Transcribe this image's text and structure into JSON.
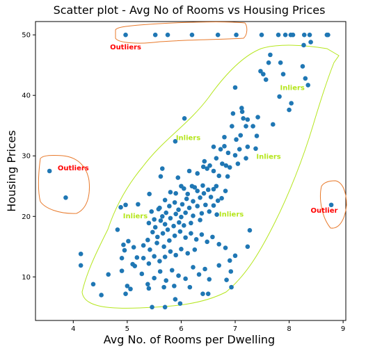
{
  "chart_data": {
    "type": "scatter",
    "title": "Scatter plot - Avg No of Rooms vs Housing Prices",
    "xlabel": "Avg No. of Rooms per Dwelling",
    "ylabel": "Housing Prices",
    "xlim": [
      3.3,
      9.05
    ],
    "ylim": [
      2.8,
      52.2
    ],
    "xticks": [
      4,
      5,
      6,
      7,
      8,
      9
    ],
    "yticks": [
      10,
      20,
      30,
      40,
      50
    ],
    "grid": false,
    "point_color": "#1f77b4",
    "outlier_color": "#ff0000",
    "inlier_color": "#b5e61d",
    "outlier_region_color": "#e8792a",
    "inlier_region_color": "#b5e61d",
    "annotations": [
      {
        "text": "Outliers",
        "x": 4.97,
        "y": 47.6,
        "color": "#ff0000"
      },
      {
        "text": "Outliers",
        "x": 4.0,
        "y": 27.6,
        "color": "#ff0000"
      },
      {
        "text": "Outlier",
        "x": 8.65,
        "y": 20.6,
        "color": "#ff0000"
      },
      {
        "text": "Inliers",
        "x": 6.13,
        "y": 32.6,
        "color": "#b5e61d"
      },
      {
        "text": "Inliers",
        "x": 7.62,
        "y": 29.5,
        "color": "#b5e61d"
      },
      {
        "text": "Inliers",
        "x": 8.06,
        "y": 40.9,
        "color": "#b5e61d"
      },
      {
        "text": "Inliers",
        "x": 5.15,
        "y": 19.7,
        "color": "#b5e61d"
      },
      {
        "text": "Inliers",
        "x": 6.93,
        "y": 20.0,
        "color": "#b5e61d"
      }
    ],
    "points": [
      [
        3.56,
        27.5
      ],
      [
        3.86,
        23.1
      ],
      [
        8.78,
        21.9
      ],
      [
        4.97,
        50.0
      ],
      [
        5.52,
        50.0
      ],
      [
        5.75,
        50.0
      ],
      [
        6.2,
        50.0
      ],
      [
        6.68,
        50.0
      ],
      [
        7.02,
        50.0
      ],
      [
        7.49,
        50.0
      ],
      [
        7.8,
        50.0
      ],
      [
        7.93,
        50.0
      ],
      [
        8.03,
        50.0
      ],
      [
        8.07,
        50.0
      ],
      [
        8.28,
        50.0
      ],
      [
        8.38,
        50.0
      ],
      [
        8.7,
        50.0
      ],
      [
        8.72,
        50.0
      ],
      [
        8.4,
        48.8
      ],
      [
        8.27,
        48.3
      ],
      [
        7.65,
        46.7
      ],
      [
        7.62,
        45.4
      ],
      [
        7.84,
        45.4
      ],
      [
        7.47,
        44.0
      ],
      [
        7.52,
        43.5
      ],
      [
        7.57,
        42.6
      ],
      [
        7.89,
        43.5
      ],
      [
        8.25,
        44.8
      ],
      [
        8.3,
        42.8
      ],
      [
        8.35,
        41.7
      ],
      [
        7.82,
        39.8
      ],
      [
        8.04,
        38.7
      ],
      [
        8.0,
        37.6
      ],
      [
        7.7,
        35.2
      ],
      [
        7.0,
        41.3
      ],
      [
        7.42,
        36.4
      ],
      [
        7.15,
        36.2
      ],
      [
        7.2,
        34.9
      ],
      [
        7.12,
        37.9
      ],
      [
        7.13,
        37.3
      ],
      [
        7.23,
        36.0
      ],
      [
        7.33,
        34.9
      ],
      [
        7.4,
        33.3
      ],
      [
        7.1,
        33.4
      ],
      [
        6.96,
        37.0
      ],
      [
        6.94,
        34.9
      ],
      [
        7.02,
        32.7
      ],
      [
        6.8,
        33.1
      ],
      [
        6.8,
        31.6
      ],
      [
        7.08,
        31.1
      ],
      [
        7.23,
        31.5
      ],
      [
        6.87,
        30.5
      ],
      [
        7.0,
        30.1
      ],
      [
        7.2,
        29.6
      ],
      [
        7.38,
        31.2
      ],
      [
        6.73,
        31.1
      ],
      [
        6.6,
        31.5
      ],
      [
        6.65,
        29.6
      ],
      [
        6.76,
        28.7
      ],
      [
        6.9,
        28.1
      ],
      [
        6.83,
        28.4
      ],
      [
        7.05,
        28.7
      ],
      [
        6.6,
        27.5
      ],
      [
        6.7,
        26.7
      ],
      [
        6.48,
        27.9
      ],
      [
        6.43,
        29.1
      ],
      [
        6.53,
        28.4
      ],
      [
        6.65,
        25.0
      ],
      [
        6.86,
        26.6
      ],
      [
        6.3,
        27.1
      ],
      [
        6.41,
        28.2
      ],
      [
        6.15,
        27.5
      ],
      [
        6.2,
        25.0
      ],
      [
        6.0,
        25.0
      ],
      [
        5.94,
        26.4
      ],
      [
        6.06,
        36.2
      ],
      [
        5.89,
        32.4
      ],
      [
        5.65,
        27.9
      ],
      [
        5.62,
        26.6
      ],
      [
        5.41,
        23.7
      ],
      [
        5.2,
        22.0
      ],
      [
        4.97,
        21.9
      ],
      [
        4.88,
        21.5
      ],
      [
        5.6,
        21.4
      ],
      [
        5.7,
        22.7
      ],
      [
        5.8,
        24.0
      ],
      [
        5.9,
        23.8
      ],
      [
        6.05,
        24.6
      ],
      [
        6.12,
        23.7
      ],
      [
        6.25,
        24.8
      ],
      [
        6.3,
        24.2
      ],
      [
        6.35,
        23.1
      ],
      [
        6.42,
        23.8
      ],
      [
        6.5,
        24.4
      ],
      [
        6.55,
        23.2
      ],
      [
        6.6,
        24.5
      ],
      [
        6.68,
        22.6
      ],
      [
        6.75,
        23.0
      ],
      [
        6.82,
        24.2
      ],
      [
        6.4,
        25.1
      ],
      [
        6.22,
        22.5
      ],
      [
        6.1,
        22.9
      ],
      [
        6.02,
        22.0
      ],
      [
        5.95,
        21.1
      ],
      [
        5.88,
        22.3
      ],
      [
        5.78,
        21.7
      ],
      [
        5.72,
        20.6
      ],
      [
        5.65,
        20.0
      ],
      [
        5.58,
        21.2
      ],
      [
        5.5,
        19.5
      ],
      [
        5.45,
        20.8
      ],
      [
        5.4,
        18.9
      ],
      [
        5.52,
        18.2
      ],
      [
        5.62,
        19.3
      ],
      [
        5.7,
        18.7
      ],
      [
        5.8,
        19.7
      ],
      [
        5.9,
        20.4
      ],
      [
        6.0,
        19.9
      ],
      [
        6.08,
        20.6
      ],
      [
        6.15,
        21.4
      ],
      [
        6.22,
        20.1
      ],
      [
        6.3,
        21.7
      ],
      [
        6.38,
        20.5
      ],
      [
        6.45,
        21.9
      ],
      [
        6.52,
        20.8
      ],
      [
        6.6,
        21.8
      ],
      [
        6.66,
        20.3
      ],
      [
        6.35,
        19.4
      ],
      [
        6.18,
        18.9
      ],
      [
        6.05,
        18.5
      ],
      [
        5.96,
        19.0
      ],
      [
        5.86,
        18.4
      ],
      [
        5.75,
        17.8
      ],
      [
        5.66,
        17.2
      ],
      [
        5.56,
        16.6
      ],
      [
        5.47,
        17.4
      ],
      [
        5.38,
        16.1
      ],
      [
        5.3,
        15.2
      ],
      [
        5.42,
        14.5
      ],
      [
        5.55,
        15.6
      ],
      [
        5.68,
        15.0
      ],
      [
        5.78,
        16.0
      ],
      [
        5.88,
        16.8
      ],
      [
        5.98,
        17.5
      ],
      [
        6.08,
        16.5
      ],
      [
        6.18,
        17.2
      ],
      [
        6.28,
        16.2
      ],
      [
        6.38,
        17.0
      ],
      [
        6.48,
        15.8
      ],
      [
        6.58,
        16.6
      ],
      [
        6.7,
        15.4
      ],
      [
        6.82,
        14.8
      ],
      [
        6.25,
        14.5
      ],
      [
        6.12,
        13.9
      ],
      [
        6.0,
        14.6
      ],
      [
        5.9,
        13.6
      ],
      [
        5.8,
        14.2
      ],
      [
        5.7,
        13.3
      ],
      [
        5.6,
        12.6
      ],
      [
        5.5,
        13.4
      ],
      [
        5.4,
        12.2
      ],
      [
        5.3,
        13.1
      ],
      [
        5.18,
        13.2
      ],
      [
        5.1,
        12.1
      ],
      [
        4.95,
        14.4
      ],
      [
        4.93,
        15.3
      ],
      [
        5.02,
        15.9
      ],
      [
        5.12,
        14.9
      ],
      [
        4.82,
        17.8
      ],
      [
        6.9,
        12.7
      ],
      [
        7.0,
        13.5
      ],
      [
        7.23,
        15.0
      ],
      [
        7.27,
        17.7
      ],
      [
        6.92,
        10.9
      ],
      [
        6.93,
        8.3
      ],
      [
        6.84,
        9.5
      ],
      [
        6.52,
        9.6
      ],
      [
        6.7,
        11.9
      ],
      [
        6.44,
        11.3
      ],
      [
        6.33,
        10.4
      ],
      [
        6.22,
        11.6
      ],
      [
        6.08,
        9.7
      ],
      [
        5.95,
        10.2
      ],
      [
        5.83,
        11.1
      ],
      [
        5.72,
        9.4
      ],
      [
        5.61,
        10.9
      ],
      [
        5.5,
        9.8
      ],
      [
        5.38,
        8.8
      ],
      [
        5.27,
        10.5
      ],
      [
        5.14,
        11.8
      ],
      [
        5.0,
        8.5
      ],
      [
        4.97,
        7.2
      ],
      [
        5.06,
        8.0
      ],
      [
        5.4,
        8.1
      ],
      [
        5.68,
        8.3
      ],
      [
        5.87,
        8.5
      ],
      [
        6.16,
        8.3
      ],
      [
        6.4,
        7.2
      ],
      [
        6.5,
        7.2
      ],
      [
        5.46,
        5.0
      ],
      [
        5.7,
        5.0
      ],
      [
        5.98,
        5.6
      ],
      [
        5.89,
        6.3
      ],
      [
        4.37,
        8.8
      ],
      [
        4.52,
        7.0
      ],
      [
        4.65,
        10.4
      ],
      [
        4.14,
        13.8
      ],
      [
        4.14,
        11.9
      ],
      [
        4.9,
        11.0
      ],
      [
        4.9,
        13.1
      ]
    ]
  }
}
